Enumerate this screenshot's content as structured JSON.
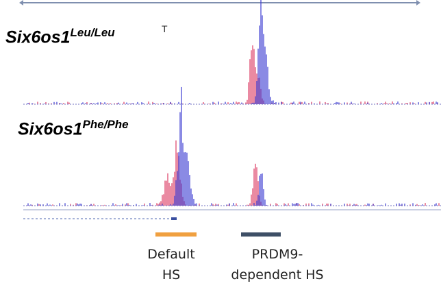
{
  "tracks": [
    {
      "label_main": "Six6os1",
      "label_sup": "Leu/Leu",
      "clipped_text": "T"
    },
    {
      "label_main": "Six6os1",
      "label_sup": "Phe/Phe"
    }
  ],
  "legend": {
    "default": {
      "line1": "Default",
      "line2": "HS",
      "color": "#f0a040"
    },
    "prdm9": {
      "line1": "PRDM9-",
      "line2": "dependent HS",
      "color": "#3e4f66"
    }
  },
  "colors": {
    "red_signal": "#dc3c64",
    "blue_signal": "#3c3cd2",
    "axis": "#8090b8"
  }
}
